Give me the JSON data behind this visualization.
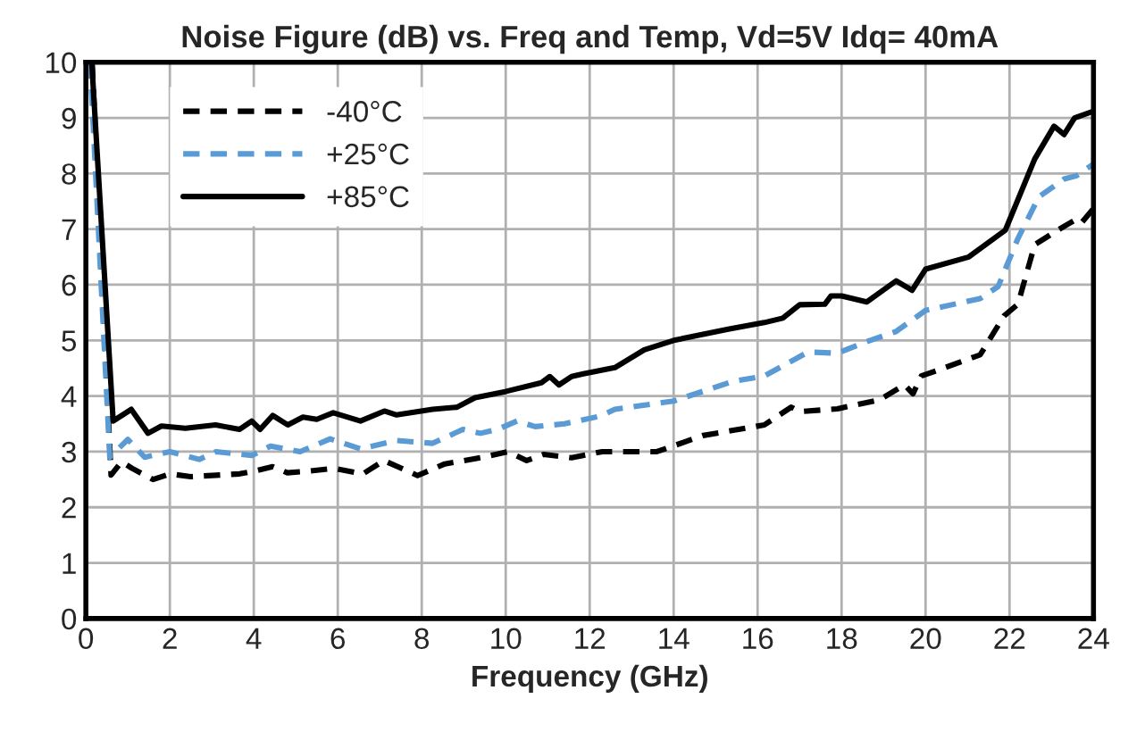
{
  "chart_data": {
    "type": "line",
    "title": "Noise Figure (dB) vs. Freq and Temp, Vd=5V Idq= 40mA",
    "xlabel": "Frequency (GHz)",
    "xlim": [
      0,
      24
    ],
    "xticks": [
      0,
      2,
      4,
      6,
      8,
      10,
      12,
      14,
      16,
      18,
      20,
      22,
      24
    ],
    "ylim": [
      0,
      10
    ],
    "yticks": [
      0,
      1,
      2,
      3,
      4,
      5,
      6,
      7,
      8,
      9,
      10
    ],
    "grid": true,
    "legend": "top left",
    "marker": "none",
    "series": [
      {
        "name": "-40°C",
        "color": "#000000",
        "line_style": "dashed",
        "x": [
          0.15,
          0.6,
          0.85,
          1.1,
          1.6,
          2.0,
          2.5,
          3.66,
          4.0,
          4.45,
          4.8,
          5.3,
          5.9,
          6.6,
          7.1,
          7.9,
          8.55,
          9.4,
          10.05,
          10.5,
          10.9,
          11.57,
          12.3,
          13.6,
          14.7,
          16.16,
          16.8,
          17.0,
          17.9,
          18.9,
          19.5,
          19.7,
          19.9,
          20.5,
          21.3,
          21.87,
          22.2,
          22.6,
          23.06,
          23.3,
          23.55,
          23.7,
          24.0
        ],
        "values": [
          10,
          2.58,
          2.82,
          2.7,
          2.5,
          2.6,
          2.55,
          2.6,
          2.65,
          2.73,
          2.62,
          2.65,
          2.7,
          2.6,
          2.84,
          2.57,
          2.78,
          2.89,
          3.0,
          2.84,
          2.95,
          2.89,
          3.0,
          3.0,
          3.29,
          3.48,
          3.8,
          3.72,
          3.77,
          3.93,
          4.2,
          4.04,
          4.36,
          4.52,
          4.74,
          5.44,
          5.65,
          6.72,
          6.94,
          7.05,
          7.16,
          7.1,
          7.37
        ]
      },
      {
        "name": "+25°C",
        "color": "#5b9bd5",
        "line_style": "dashed",
        "x": [
          0.1,
          0.57,
          1.0,
          1.4,
          2.0,
          2.7,
          3.1,
          3.95,
          4.4,
          5.1,
          5.82,
          6.54,
          7.4,
          8.26,
          8.98,
          9.4,
          9.8,
          10.27,
          10.7,
          11.4,
          12.26,
          12.6,
          14.0,
          15.4,
          16.16,
          17.2,
          17.9,
          18.5,
          19.3,
          20.0,
          21.3,
          21.73,
          22.2,
          22.7,
          23.3,
          23.6,
          24.0
        ],
        "values": [
          10,
          2.9,
          3.22,
          2.9,
          3.0,
          2.86,
          3.0,
          2.93,
          3.1,
          3.0,
          3.23,
          3.05,
          3.2,
          3.15,
          3.4,
          3.33,
          3.4,
          3.55,
          3.45,
          3.5,
          3.64,
          3.76,
          3.91,
          4.26,
          4.36,
          4.79,
          4.77,
          4.95,
          5.16,
          5.54,
          5.75,
          5.97,
          6.83,
          7.58,
          7.9,
          7.96,
          8.17
        ]
      },
      {
        "name": "+85°C",
        "color": "#000000",
        "line_style": "solid",
        "x": [
          0.14,
          0.65,
          1.08,
          1.48,
          1.8,
          2.37,
          3.09,
          3.66,
          3.95,
          4.15,
          4.45,
          4.81,
          5.17,
          5.5,
          5.89,
          6.54,
          7.11,
          7.4,
          8.26,
          8.84,
          9.27,
          9.99,
          10.85,
          11.05,
          11.27,
          11.57,
          11.85,
          12.6,
          13.3,
          14.0,
          15.3,
          16.16,
          16.6,
          17.0,
          17.6,
          17.75,
          18.0,
          18.6,
          19.3,
          19.68,
          20.0,
          21.03,
          21.9,
          22.6,
          23.06,
          23.3,
          23.55,
          24.0
        ],
        "values": [
          10,
          3.55,
          3.76,
          3.33,
          3.46,
          3.42,
          3.48,
          3.4,
          3.55,
          3.4,
          3.65,
          3.48,
          3.62,
          3.58,
          3.7,
          3.55,
          3.73,
          3.66,
          3.76,
          3.8,
          3.97,
          4.08,
          4.24,
          4.35,
          4.2,
          4.35,
          4.4,
          4.51,
          4.83,
          5.0,
          5.2,
          5.32,
          5.4,
          5.64,
          5.65,
          5.8,
          5.8,
          5.69,
          6.07,
          5.9,
          6.28,
          6.5,
          6.98,
          8.26,
          8.85,
          8.7,
          9.0,
          9.12
        ]
      }
    ]
  }
}
